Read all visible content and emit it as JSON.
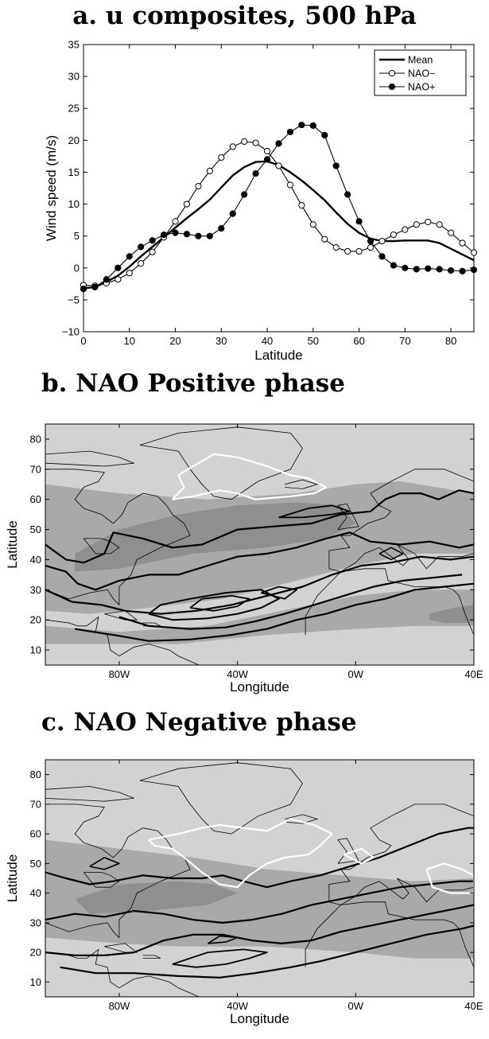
{
  "colors": {
    "map_background": "#d2d2d2",
    "map_shade_mid": "#a9a9a9",
    "map_shade_dark": "#8f8f8f",
    "contour": "#000000",
    "negative_contour": "#ffffff"
  },
  "chart_data": [
    {
      "type": "line",
      "title": "a. u composites, 500 hPa",
      "xlabel": "Latitude",
      "ylabel": "Wind speed (m/s)",
      "xlim": [
        0,
        85
      ],
      "ylim": [
        -10,
        35
      ],
      "xticks": [
        "0",
        "10",
        "20",
        "30",
        "40",
        "50",
        "60",
        "70",
        "80"
      ],
      "yticks": [
        "35",
        "30",
        "25",
        "20",
        "15",
        "10",
        "5",
        "0",
        "−5",
        "−10"
      ],
      "legend_position": "top-right",
      "grid": false,
      "x": [
        0,
        2.5,
        5,
        7.5,
        10,
        12.5,
        15,
        17.5,
        20,
        22.5,
        25,
        27.5,
        30,
        32.5,
        35,
        37.5,
        40,
        42.5,
        45,
        47.5,
        50,
        52.5,
        55,
        57.5,
        60,
        62.5,
        65,
        67.5,
        70,
        72.5,
        75,
        77.5,
        80,
        82.5,
        85
      ],
      "series": [
        {
          "name": "Mean",
          "style": "thick-line",
          "values": [
            -3.2,
            -3.0,
            -2.2,
            -1.2,
            0.2,
            1.8,
            3.3,
            4.8,
            6.3,
            7.8,
            9.2,
            10.7,
            12.6,
            14.5,
            15.8,
            16.6,
            16.7,
            16.1,
            15.0,
            13.7,
            12.2,
            10.6,
            8.7,
            6.9,
            5.5,
            4.6,
            4.2,
            4.2,
            4.3,
            4.3,
            4.3,
            3.9,
            3.0,
            2.1,
            1.2
          ]
        },
        {
          "name": "NAO−",
          "style": "open-circle",
          "values": [
            -2.7,
            -2.8,
            -2.4,
            -1.8,
            -0.8,
            0.7,
            2.5,
            4.8,
            7.3,
            10.0,
            12.8,
            15.2,
            17.3,
            19.0,
            19.8,
            19.6,
            18.3,
            16.0,
            13.0,
            9.8,
            6.8,
            4.5,
            3.2,
            2.6,
            2.6,
            3.2,
            4.2,
            5.2,
            6.0,
            6.8,
            7.2,
            6.8,
            5.5,
            3.9,
            2.4
          ]
        },
        {
          "name": "NAO+",
          "style": "filled-circle",
          "values": [
            -3.3,
            -3.0,
            -1.8,
            0.0,
            1.8,
            3.3,
            4.3,
            5.2,
            5.5,
            5.3,
            5.0,
            5.0,
            6.2,
            8.5,
            11.5,
            14.8,
            17.0,
            19.5,
            21.3,
            22.4,
            22.3,
            20.8,
            16.0,
            11.5,
            7.3,
            4.2,
            1.8,
            0.4,
            0.0,
            -0.2,
            -0.1,
            -0.2,
            -0.4,
            -0.5,
            -0.3
          ]
        }
      ]
    },
    {
      "type": "map",
      "title": "b. NAO Positive phase",
      "xlabel": "Longitude",
      "ylabel": "Latitude",
      "xlim": [
        -105,
        40
      ],
      "ylim": [
        5,
        85
      ],
      "xticks": [
        {
          "value": -80,
          "label": "80W"
        },
        {
          "value": -40,
          "label": "40W"
        },
        {
          "value": 0,
          "label": "0W"
        },
        {
          "value": 40,
          "label": "40E"
        }
      ],
      "yticks": [
        {
          "value": 80,
          "label": "80"
        },
        {
          "value": 70,
          "label": "70"
        },
        {
          "value": 60,
          "label": "60"
        },
        {
          "value": 50,
          "label": "50"
        },
        {
          "value": 40,
          "label": "40"
        },
        {
          "value": 30,
          "label": "30"
        },
        {
          "value": 20,
          "label": "20"
        },
        {
          "value": 10,
          "label": "10"
        }
      ]
    },
    {
      "type": "map",
      "title": "c. NAO Negative phase",
      "xlabel": "Longitude",
      "ylabel": "Latitude",
      "xlim": [
        -105,
        40
      ],
      "ylim": [
        5,
        85
      ],
      "xticks": [
        {
          "value": -80,
          "label": "80W"
        },
        {
          "value": -40,
          "label": "40W"
        },
        {
          "value": 0,
          "label": "0W"
        },
        {
          "value": 40,
          "label": "40E"
        }
      ],
      "yticks": [
        {
          "value": 80,
          "label": "80"
        },
        {
          "value": 70,
          "label": "70"
        },
        {
          "value": 60,
          "label": "60"
        },
        {
          "value": 50,
          "label": "50"
        },
        {
          "value": 40,
          "label": "40"
        },
        {
          "value": 30,
          "label": "30"
        },
        {
          "value": 20,
          "label": "20"
        },
        {
          "value": 10,
          "label": "10"
        }
      ]
    }
  ]
}
